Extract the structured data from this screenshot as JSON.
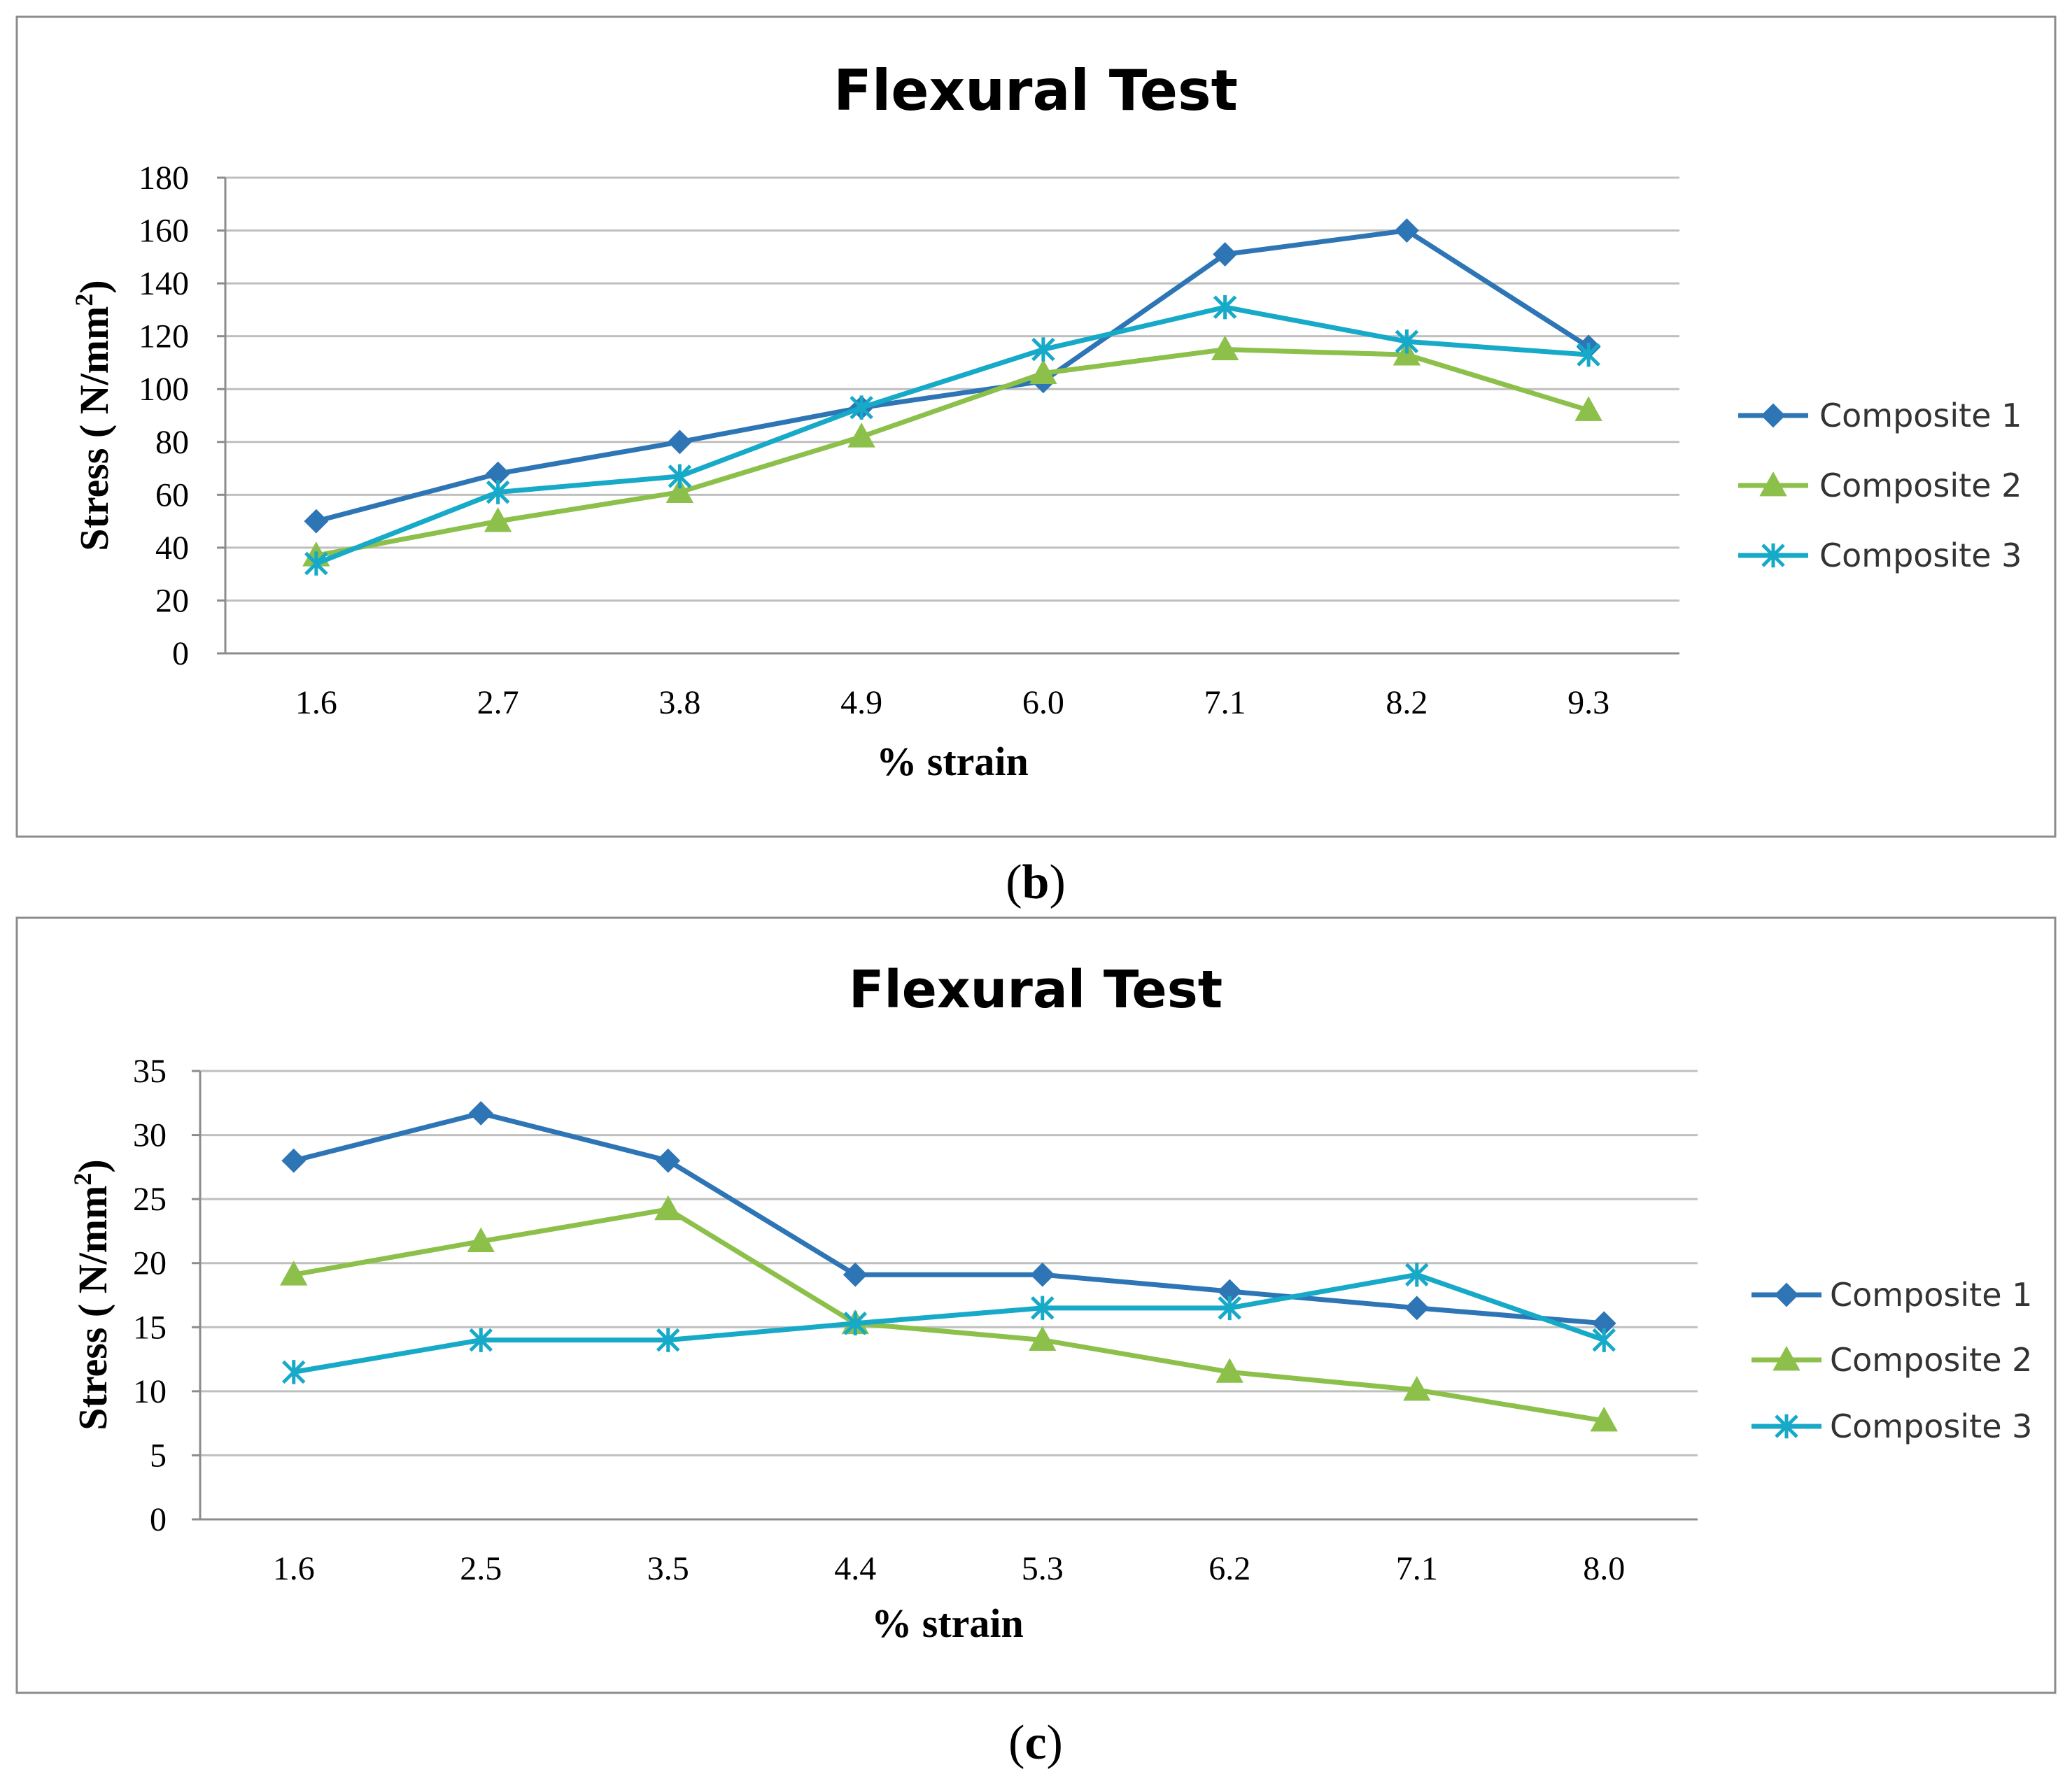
{
  "chart_data": [
    {
      "type": "line",
      "title": "Flexural Test",
      "xlabel": "% strain",
      "ylabel": "Stress ( N/mm²)",
      "ylabel_main": "Stress ( N/mm",
      "ylabel_sup": "2",
      "ylabel_end": ")",
      "categories": [
        "1.6",
        "2.7",
        "3.8",
        "4.9",
        "6.0",
        "7.1",
        "8.2",
        "9.3"
      ],
      "ylim": [
        0,
        180
      ],
      "ytick_step": 20,
      "yticks": [
        "0",
        "20",
        "40",
        "60",
        "80",
        "100",
        "120",
        "140",
        "160",
        "180"
      ],
      "grid": true,
      "legend": "right",
      "caption_open": "(",
      "caption_letter": "b",
      "caption_close": ")",
      "series": [
        {
          "name": "Composite 1",
          "marker": "diamond",
          "color": "#2e75b6",
          "values": [
            50,
            68,
            80,
            93,
            103,
            151,
            160,
            116
          ]
        },
        {
          "name": "Composite 2",
          "marker": "triangle",
          "color": "#8cc04b",
          "values": [
            37,
            50,
            61,
            82,
            106,
            115,
            113,
            92
          ]
        },
        {
          "name": "Composite 3",
          "marker": "star",
          "color": "#17a9c8",
          "values": [
            34,
            61,
            67,
            93,
            115,
            131,
            118,
            113
          ]
        }
      ]
    },
    {
      "type": "line",
      "title": "Flexural Test",
      "xlabel": "% strain",
      "ylabel": "Stress ( N/mm²)",
      "ylabel_main": "Stress ( N/mm",
      "ylabel_sup": "2",
      "ylabel_end": ")",
      "categories": [
        "1.6",
        "2.5",
        "3.5",
        "4.4",
        "5.3",
        "6.2",
        "7.1",
        "8.0"
      ],
      "ylim": [
        0,
        35
      ],
      "ytick_step": 5,
      "yticks": [
        "0",
        "5",
        "10",
        "15",
        "20",
        "25",
        "30",
        "35"
      ],
      "grid": true,
      "legend": "right",
      "caption_open": "(",
      "caption_letter": "c",
      "caption_close": ")",
      "series": [
        {
          "name": "Composite 1",
          "marker": "diamond",
          "color": "#2e75b6",
          "values": [
            28,
            31.7,
            28,
            19.1,
            19.1,
            17.8,
            16.5,
            15.3
          ]
        },
        {
          "name": "Composite 2",
          "marker": "triangle",
          "color": "#8cc04b",
          "values": [
            19.1,
            21.7,
            24.2,
            15.3,
            14,
            11.5,
            10.1,
            7.7
          ]
        },
        {
          "name": "Composite 3",
          "marker": "star",
          "color": "#17a9c8",
          "values": [
            11.5,
            14,
            14,
            15.3,
            16.5,
            16.5,
            19.1,
            14
          ]
        }
      ]
    }
  ]
}
